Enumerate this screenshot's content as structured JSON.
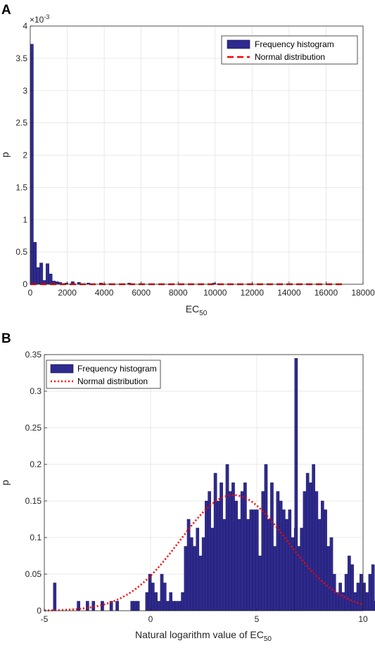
{
  "chart_data": [
    {
      "panel_label": "A",
      "type": "bar",
      "xlabel_main": "EC",
      "xlabel_sub": "50",
      "ylabel": "p",
      "exponent_label": "×10",
      "exponent_power": "-3",
      "xlim": [
        0,
        18000
      ],
      "ylim": [
        0,
        4
      ],
      "xticks": [
        "0",
        "2000",
        "4000",
        "6000",
        "8000",
        "10000",
        "12000",
        "14000",
        "16000",
        "18000"
      ],
      "yticks": [
        "0",
        "0.5",
        "1",
        "1.5",
        "2",
        "2.5",
        "3",
        "3.5",
        "4"
      ],
      "bin_width": 170,
      "bar_centers": [
        85,
        255,
        425,
        595,
        765,
        935,
        1105,
        1275,
        1445,
        1615,
        1955,
        2295,
        2635,
        3145,
        3825,
        4335,
        5355,
        6035,
        9945
      ],
      "bar_values": [
        3.72,
        0.65,
        0.26,
        0.33,
        0.06,
        0.32,
        0.16,
        0.05,
        0.04,
        0.03,
        0.02,
        0.04,
        0.03,
        0.02,
        0.02,
        0.01,
        0.02,
        0.01,
        0.02
      ],
      "normal_mu": 400,
      "normal_sigma": 1600,
      "normal_scale": 0.000999,
      "normal_range": [
        0,
        17000
      ],
      "legend": [
        "Frequency histogram",
        "Normal distribution"
      ],
      "grid": true,
      "legend_position": "top-right",
      "colors": {
        "bar": "#2e2a8e",
        "bar_edge": "#14124a",
        "line": "#ff0000",
        "grid": "#e3e3e3",
        "axis": "#262626"
      }
    },
    {
      "panel_label": "B",
      "type": "bar",
      "xlabel_main": "Natural logarithm value of EC",
      "xlabel_sub": "50",
      "ylabel": "p",
      "xlim": [
        -5,
        10
      ],
      "ylim": [
        0,
        0.35
      ],
      "xticks": [
        "-5",
        "0",
        "5",
        "10"
      ],
      "yticks": [
        "0",
        "0.05",
        "0.1",
        "0.15",
        "0.2",
        "0.25",
        "0.3",
        "0.35"
      ],
      "bin_width": 0.14,
      "bar_start": -5.0,
      "bar_values": [
        0,
        0,
        0,
        0.038,
        0,
        0,
        0,
        0,
        0,
        0,
        0,
        0.013,
        0,
        0,
        0.013,
        0,
        0.013,
        0,
        0,
        0.013,
        0,
        0,
        0.013,
        0,
        0.013,
        0,
        0,
        0,
        0,
        0.013,
        0.013,
        0.013,
        0,
        0,
        0.025,
        0.05,
        0.038,
        0.025,
        0.013,
        0.05,
        0.038,
        0.013,
        0.025,
        0.013,
        0.013,
        0.013,
        0.025,
        0.088,
        0.125,
        0.1,
        0.088,
        0.113,
        0.075,
        0.1,
        0.15,
        0.163,
        0.113,
        0.188,
        0.15,
        0.175,
        0.125,
        0.2,
        0.163,
        0.175,
        0.15,
        0.125,
        0.163,
        0.175,
        0.125,
        0.138,
        0.138,
        0.138,
        0.075,
        0.163,
        0.2,
        0.125,
        0.175,
        0.088,
        0.163,
        0.15,
        0.138,
        0.125,
        0.138,
        0.1,
        0.113,
        0.088,
        0.113,
        0.163,
        0.188,
        0.175,
        0.2,
        0.163,
        0.125,
        0.15,
        0.138,
        0.088,
        0.1,
        0.05,
        0.025,
        0.038,
        0.025,
        0.05,
        0.075,
        0.063,
        0.025,
        0.038,
        0.05,
        0.038,
        0.025,
        0.05,
        0.063,
        0.013,
        0.025,
        0.013,
        0.013,
        0.013,
        0.013,
        0.013,
        0.013,
        0.025,
        0.038,
        0.013,
        0.025,
        0.013,
        0.013,
        0.025,
        0.05,
        0.013,
        0.038,
        0.05,
        0.025,
        0.038,
        0.025,
        0.025,
        0.05,
        0.038,
        0.025,
        0.013,
        0.013,
        0.025,
        0.013,
        0.013,
        0.013,
        0.013,
        0.025,
        0.013
      ],
      "tall_bar": {
        "x": 6.85,
        "value": 0.345
      },
      "normal_mu": 3.9,
      "normal_sigma": 2.52,
      "normal_peak": 0.158,
      "normal_range": [
        -5,
        10
      ],
      "legend": [
        "Frequency histogram",
        "Normal distribution"
      ],
      "grid": true,
      "legend_position": "top-left",
      "colors": {
        "bar": "#2e2a8e",
        "bar_edge": "#14124a",
        "line": "#ff0000",
        "grid": "#e3e3e3",
        "axis": "#262626"
      }
    }
  ]
}
